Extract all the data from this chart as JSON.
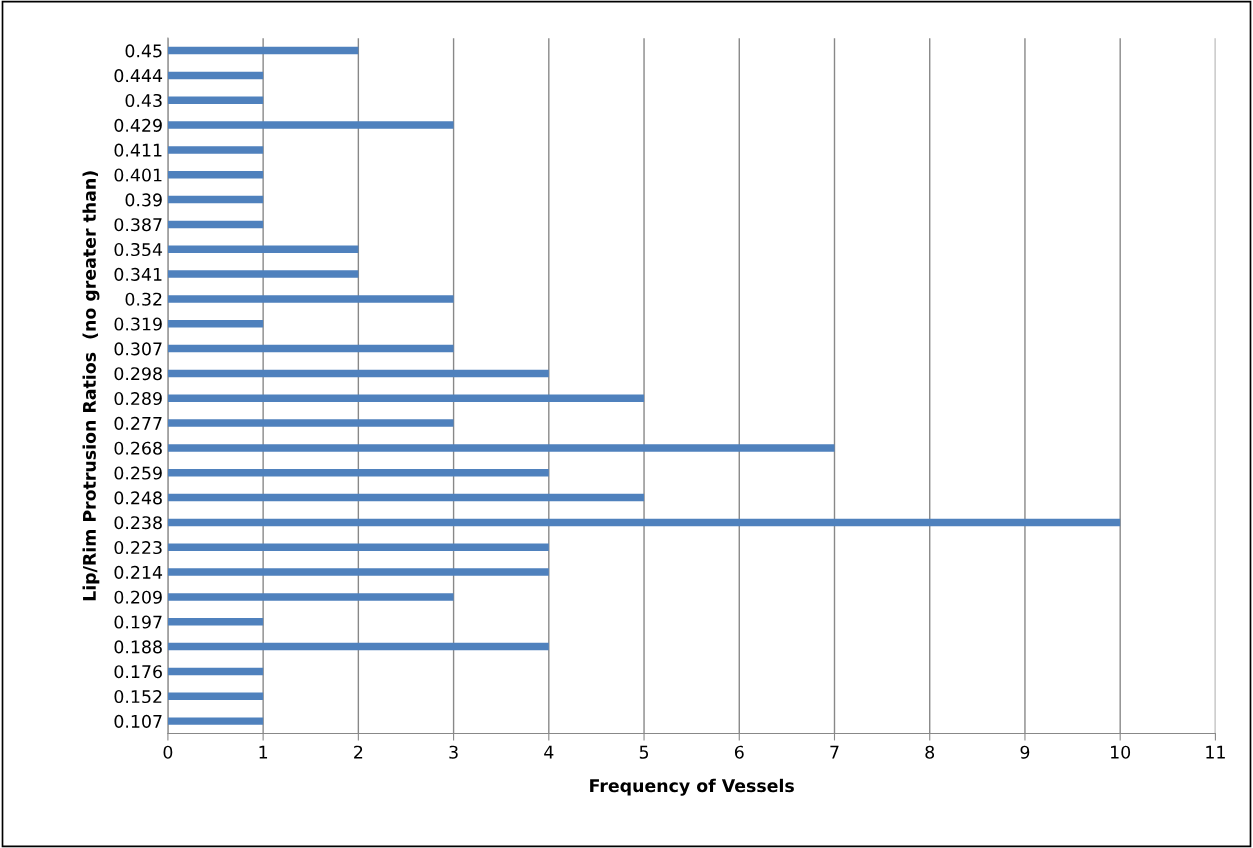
{
  "chart_data": {
    "type": "bar",
    "orientation": "horizontal",
    "ylabel": "Lip/Rim Protrusion Ratios  (no greater than)",
    "xlabel": "Frequency of Vessels",
    "categories": [
      "0.45",
      "0.444",
      "0.43",
      "0.429",
      "0.411",
      "0.401",
      "0.39",
      "0.387",
      "0.354",
      "0.341",
      "0.32",
      "0.319",
      "0.307",
      "0.298",
      "0.289",
      "0.277",
      "0.268",
      "0.259",
      "0.248",
      "0.238",
      "0.223",
      "0.214",
      "0.209",
      "0.197",
      "0.188",
      "0.176",
      "0.152",
      "0.107"
    ],
    "values": [
      2,
      1,
      1,
      3,
      1,
      1,
      1,
      1,
      2,
      2,
      3,
      1,
      3,
      4,
      5,
      3,
      7,
      4,
      5,
      10,
      4,
      4,
      3,
      1,
      4,
      1,
      1,
      1
    ],
    "color": "#4f81bd",
    "xlim": [
      0,
      11
    ],
    "xticks": [
      0,
      1,
      2,
      3,
      4,
      5,
      6,
      7,
      8,
      9,
      10,
      11
    ],
    "grid": "x",
    "legend": false
  }
}
